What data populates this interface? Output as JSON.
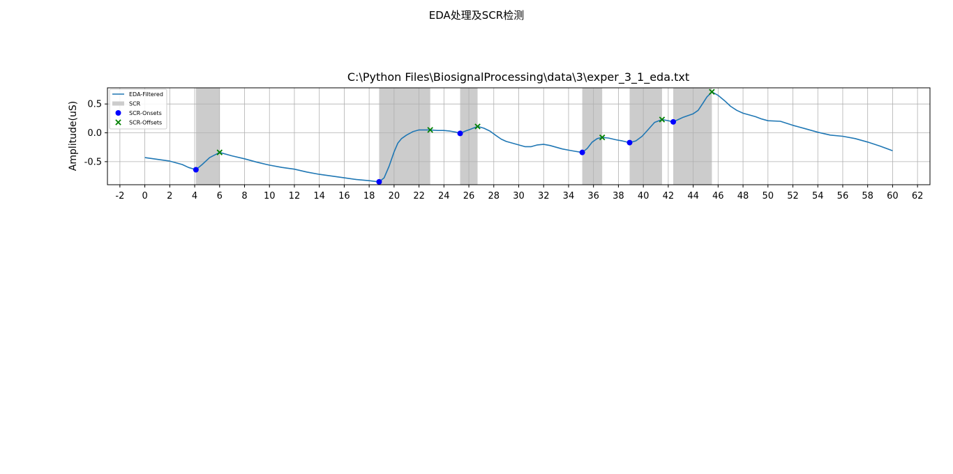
{
  "figure": {
    "suptitle": "EDA处理及SCR检测"
  },
  "chart_data": {
    "type": "line",
    "title": "C:\\Python Files\\BiosignalProcessing\\data\\3\\exper_3_1_eda.txt",
    "xlabel": "",
    "ylabel": "Amplitude(uS)",
    "xlim": [
      -3,
      63
    ],
    "ylim": [
      -0.9,
      0.78
    ],
    "x_ticks": [
      -2,
      0,
      2,
      4,
      6,
      8,
      10,
      12,
      14,
      16,
      18,
      20,
      22,
      24,
      26,
      28,
      30,
      32,
      34,
      36,
      38,
      40,
      42,
      44,
      46,
      48,
      50,
      52,
      54,
      56,
      58,
      60,
      62
    ],
    "x_tick_labels": [
      "-2",
      "0",
      "2",
      "4",
      "6",
      "8",
      "10",
      "12",
      "14",
      "16",
      "18",
      "20",
      "22",
      "24",
      "26",
      "28",
      "30",
      "32",
      "34",
      "36",
      "38",
      "40",
      "42",
      "44",
      "46",
      "48",
      "50",
      "52",
      "54",
      "56",
      "58",
      "60",
      "62"
    ],
    "y_ticks": [
      -0.5,
      0.0,
      0.5
    ],
    "y_tick_labels": [
      "-0.5",
      "0.0",
      "0.5"
    ],
    "grid": true,
    "legend_position": "upper-left",
    "colors": {
      "line": "#1f77b4",
      "span": "#cccccc",
      "onset": "#0000ff",
      "offset": "#008000",
      "grid": "#b0b0b0"
    },
    "series": [
      {
        "name": "EDA-Filtered",
        "kind": "line",
        "x": [
          0,
          1,
          2,
          3,
          3.5,
          4.1,
          4.6,
          5.2,
          6.0,
          7.0,
          8.0,
          9.0,
          10.0,
          11.0,
          12.0,
          13.0,
          14.0,
          15.0,
          16.0,
          17.0,
          18.0,
          18.8,
          19.2,
          19.6,
          20.0,
          20.3,
          20.6,
          21.0,
          21.5,
          22.0,
          22.9,
          23.5,
          24.0,
          24.5,
          25.0,
          25.3,
          25.7,
          26.1,
          26.7,
          27.2,
          27.7,
          28.2,
          28.6,
          29.0,
          29.5,
          30.0,
          30.5,
          31.0,
          31.5,
          32.0,
          32.5,
          33.0,
          33.5,
          34.0,
          34.5,
          35.1,
          35.5,
          35.9,
          36.3,
          36.7,
          37.2,
          37.8,
          38.3,
          38.9,
          39.4,
          39.9,
          40.4,
          40.9,
          41.5,
          42.0,
          42.4,
          42.8,
          43.2,
          43.6,
          44.0,
          44.4,
          44.8,
          45.1,
          45.5,
          46.0,
          46.5,
          47.0,
          47.5,
          48.0,
          48.5,
          49.0,
          49.5,
          50.0,
          51.0,
          52.0,
          53.0,
          54.0,
          55.0,
          56.0,
          57.0,
          58.0,
          59.0,
          60.0
        ],
        "y": [
          -0.43,
          -0.46,
          -0.49,
          -0.55,
          -0.6,
          -0.64,
          -0.55,
          -0.43,
          -0.34,
          -0.4,
          -0.45,
          -0.51,
          -0.56,
          -0.6,
          -0.63,
          -0.68,
          -0.72,
          -0.75,
          -0.78,
          -0.81,
          -0.83,
          -0.85,
          -0.78,
          -0.58,
          -0.33,
          -0.18,
          -0.1,
          -0.04,
          0.02,
          0.05,
          0.05,
          0.04,
          0.04,
          0.03,
          0.01,
          -0.01,
          0.03,
          0.06,
          0.11,
          0.08,
          0.03,
          -0.05,
          -0.11,
          -0.15,
          -0.18,
          -0.21,
          -0.24,
          -0.24,
          -0.21,
          -0.2,
          -0.22,
          -0.25,
          -0.28,
          -0.3,
          -0.32,
          -0.34,
          -0.27,
          -0.16,
          -0.1,
          -0.08,
          -0.09,
          -0.12,
          -0.14,
          -0.17,
          -0.14,
          -0.06,
          0.06,
          0.18,
          0.23,
          0.21,
          0.19,
          0.23,
          0.27,
          0.3,
          0.33,
          0.39,
          0.52,
          0.62,
          0.71,
          0.65,
          0.56,
          0.46,
          0.39,
          0.34,
          0.31,
          0.28,
          0.24,
          0.21,
          0.2,
          0.13,
          0.07,
          0.01,
          -0.04,
          -0.06,
          -0.1,
          -0.16,
          -0.23,
          -0.31
        ]
      },
      {
        "name": "SCR",
        "kind": "span",
        "spans": [
          [
            4.1,
            6.0
          ],
          [
            18.8,
            22.9
          ],
          [
            25.3,
            26.7
          ],
          [
            35.1,
            36.7
          ],
          [
            38.9,
            41.5
          ],
          [
            42.4,
            45.5
          ]
        ]
      },
      {
        "name": "SCR-Onsets",
        "kind": "scatter",
        "marker": "circle",
        "x": [
          4.1,
          18.8,
          25.3,
          35.1,
          38.9,
          42.4
        ],
        "y": [
          -0.64,
          -0.85,
          -0.01,
          -0.34,
          -0.17,
          0.19
        ]
      },
      {
        "name": "SCR-Offsets",
        "kind": "scatter",
        "marker": "x",
        "x": [
          6.0,
          22.9,
          26.7,
          36.7,
          41.5,
          45.5
        ],
        "y": [
          -0.34,
          0.05,
          0.11,
          -0.08,
          0.23,
          0.71
        ]
      }
    ]
  }
}
